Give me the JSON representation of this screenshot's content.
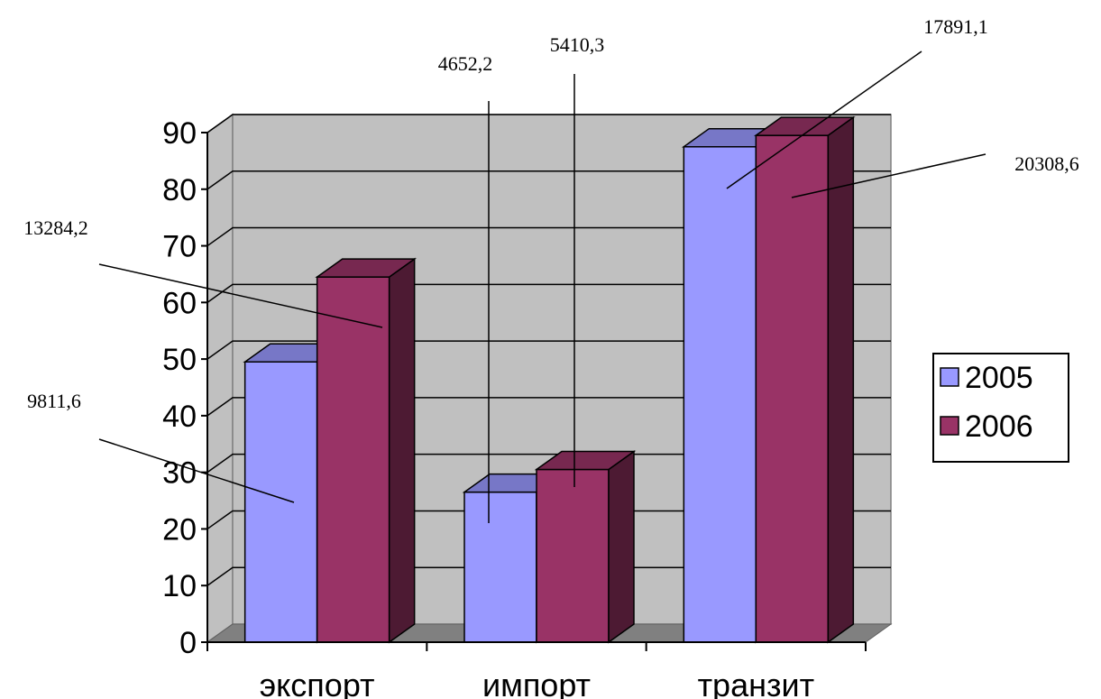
{
  "chart_data": {
    "type": "bar",
    "categories": [
      "экспорт",
      "импорт",
      "транзит"
    ],
    "series": [
      {
        "name": "2005",
        "values": [
          49.5,
          26.5,
          87.5
        ],
        "color": "#9999ff"
      },
      {
        "name": "2006",
        "values": [
          64.5,
          30.5,
          89.5
        ],
        "color": "#993366"
      }
    ],
    "ylim": [
      0,
      90
    ],
    "yticks": [
      0,
      10,
      20,
      30,
      40,
      50,
      60,
      70,
      80,
      90
    ],
    "grid": true,
    "legend": "right",
    "annotations": [
      {
        "text": "9811,6",
        "category": 0,
        "series": 0
      },
      {
        "text": "13284,2",
        "category": 0,
        "series": 1
      },
      {
        "text": "4652,2",
        "category": 1,
        "series": 0
      },
      {
        "text": "5410,3",
        "category": 1,
        "series": 1
      },
      {
        "text": "17891,1",
        "category": 2,
        "series": 0
      },
      {
        "text": "20308,6",
        "category": 2,
        "series": 1
      }
    ],
    "title": "",
    "xlabel": "",
    "ylabel": ""
  }
}
